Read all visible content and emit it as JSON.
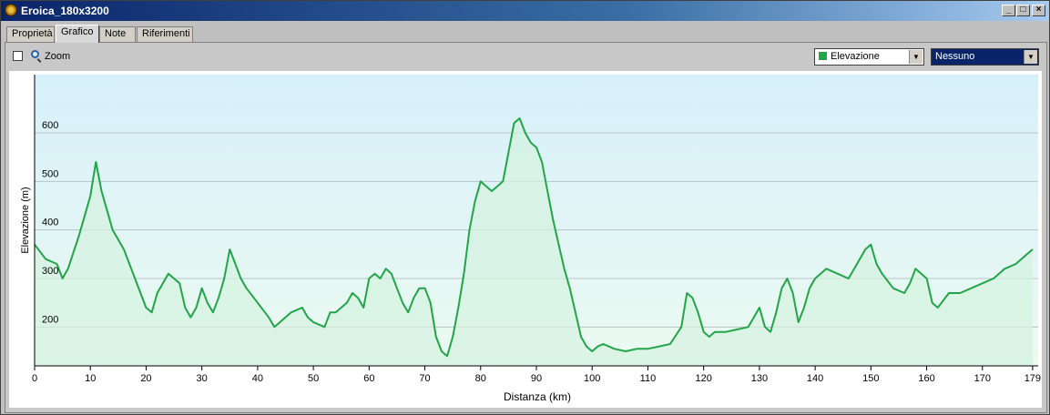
{
  "window": {
    "title": "Eroica_180x3200"
  },
  "tabs": [
    {
      "label": "Proprietà"
    },
    {
      "label": "Grafico"
    },
    {
      "label": "Note"
    },
    {
      "label": "Riferimenti"
    }
  ],
  "toolbar": {
    "zoom_label": "Zoom",
    "series_select": "Elevazione",
    "overlay_select": "Nessuno"
  },
  "colors": {
    "line": "#22a548",
    "fill": "#d4f2e0",
    "bg_top": "#d6f0fa",
    "bg_bottom": "#ecfaf1"
  },
  "chart_data": {
    "type": "area",
    "xlabel": "Distanza  (km)",
    "ylabel": "Elevazione (m)",
    "xlim": [
      0,
      180
    ],
    "ylim": [
      120,
      720
    ],
    "x_ticks": [
      0,
      10,
      20,
      30,
      40,
      50,
      60,
      70,
      80,
      90,
      100,
      110,
      120,
      130,
      140,
      150,
      160,
      170,
      179
    ],
    "y_ticks": [
      200,
      300,
      400,
      500,
      600
    ],
    "grid": true,
    "x": [
      0,
      2,
      4,
      5,
      6,
      8,
      10,
      11,
      12,
      14,
      16,
      18,
      20,
      21,
      22,
      24,
      26,
      27,
      28,
      29,
      30,
      31,
      32,
      33,
      34,
      35,
      36,
      37,
      38,
      40,
      42,
      43,
      44,
      46,
      48,
      49,
      50,
      52,
      53,
      54,
      56,
      57,
      58,
      59,
      60,
      61,
      62,
      63,
      64,
      65,
      66,
      67,
      68,
      69,
      70,
      71,
      72,
      73,
      74,
      75,
      76,
      77,
      78,
      79,
      80,
      81,
      82,
      83,
      84,
      85,
      86,
      87,
      88,
      89,
      90,
      91,
      92,
      93,
      94,
      95,
      96,
      97,
      98,
      99,
      100,
      101,
      102,
      104,
      106,
      108,
      110,
      112,
      114,
      116,
      117,
      118,
      119,
      120,
      121,
      122,
      124,
      126,
      128,
      129,
      130,
      131,
      132,
      133,
      134,
      135,
      136,
      137,
      138,
      139,
      140,
      142,
      144,
      146,
      148,
      149,
      150,
      151,
      152,
      154,
      156,
      157,
      158,
      160,
      161,
      162,
      164,
      166,
      168,
      170,
      172,
      174,
      176,
      178,
      179
    ],
    "values": [
      370,
      340,
      330,
      300,
      320,
      390,
      470,
      540,
      480,
      400,
      360,
      300,
      240,
      230,
      270,
      310,
      290,
      240,
      220,
      240,
      280,
      250,
      230,
      260,
      300,
      360,
      330,
      300,
      280,
      250,
      220,
      200,
      210,
      230,
      240,
      220,
      210,
      200,
      230,
      230,
      250,
      270,
      260,
      240,
      300,
      310,
      300,
      320,
      310,
      280,
      250,
      230,
      260,
      280,
      280,
      250,
      180,
      150,
      140,
      180,
      240,
      310,
      400,
      460,
      500,
      490,
      480,
      490,
      500,
      560,
      620,
      630,
      600,
      580,
      570,
      540,
      480,
      420,
      370,
      320,
      280,
      230,
      180,
      160,
      150,
      160,
      165,
      155,
      150,
      155,
      155,
      160,
      165,
      200,
      270,
      260,
      230,
      190,
      180,
      190,
      190,
      195,
      200,
      220,
      240,
      200,
      190,
      230,
      280,
      300,
      270,
      210,
      240,
      280,
      300,
      320,
      310,
      300,
      340,
      360,
      370,
      330,
      310,
      280,
      270,
      290,
      320,
      300,
      250,
      240,
      270,
      270,
      280,
      290,
      300,
      320,
      330,
      350,
      360
    ]
  }
}
